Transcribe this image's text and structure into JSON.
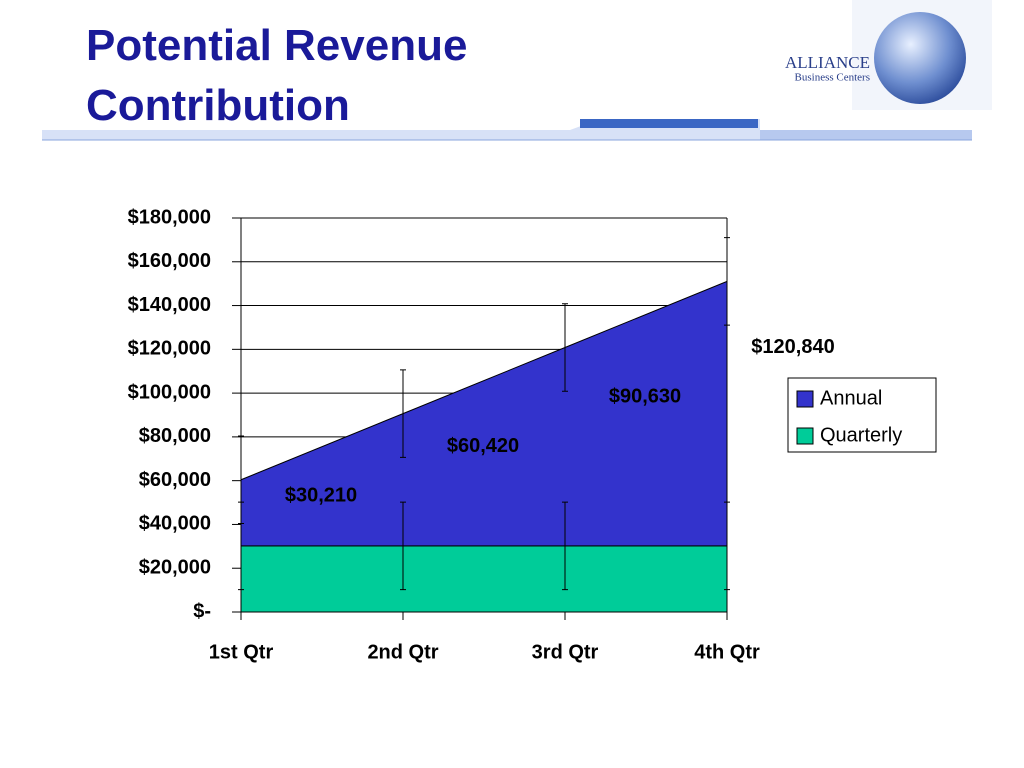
{
  "header": {
    "title": "Potential Revenue Contribution",
    "logo": {
      "name": "ALLIANCE",
      "tagline": "Business Centers"
    }
  },
  "chart_data": {
    "type": "area",
    "stacked": true,
    "categories": [
      "1st Qtr",
      "2nd Qtr",
      "3rd Qtr",
      "4th Qtr"
    ],
    "series": [
      {
        "name": "Quarterly",
        "color": "#00cc99",
        "values": [
          30210,
          30210,
          30210,
          30210
        ],
        "errors": [
          20000,
          20000,
          20000,
          20000
        ]
      },
      {
        "name": "Annual",
        "color": "#3333cc",
        "values": [
          30210,
          60420,
          90630,
          120840
        ],
        "value_labels": [
          "$30,210",
          "$60,420",
          "$90,630",
          "$120,840"
        ],
        "errors": [
          20000,
          20000,
          20000,
          20000
        ]
      }
    ],
    "ylim": [
      0,
      180000
    ],
    "yticks": [
      {
        "value": 0,
        "label": "$-"
      },
      {
        "value": 20000,
        "label": "$20,000"
      },
      {
        "value": 40000,
        "label": "$40,000"
      },
      {
        "value": 60000,
        "label": "$60,000"
      },
      {
        "value": 80000,
        "label": "$80,000"
      },
      {
        "value": 100000,
        "label": "$100,000"
      },
      {
        "value": 120000,
        "label": "$120,000"
      },
      {
        "value": 140000,
        "label": "$140,000"
      },
      {
        "value": 160000,
        "label": "$160,000"
      },
      {
        "value": 180000,
        "label": "$180,000"
      }
    ],
    "grid": true,
    "legend": "right"
  }
}
